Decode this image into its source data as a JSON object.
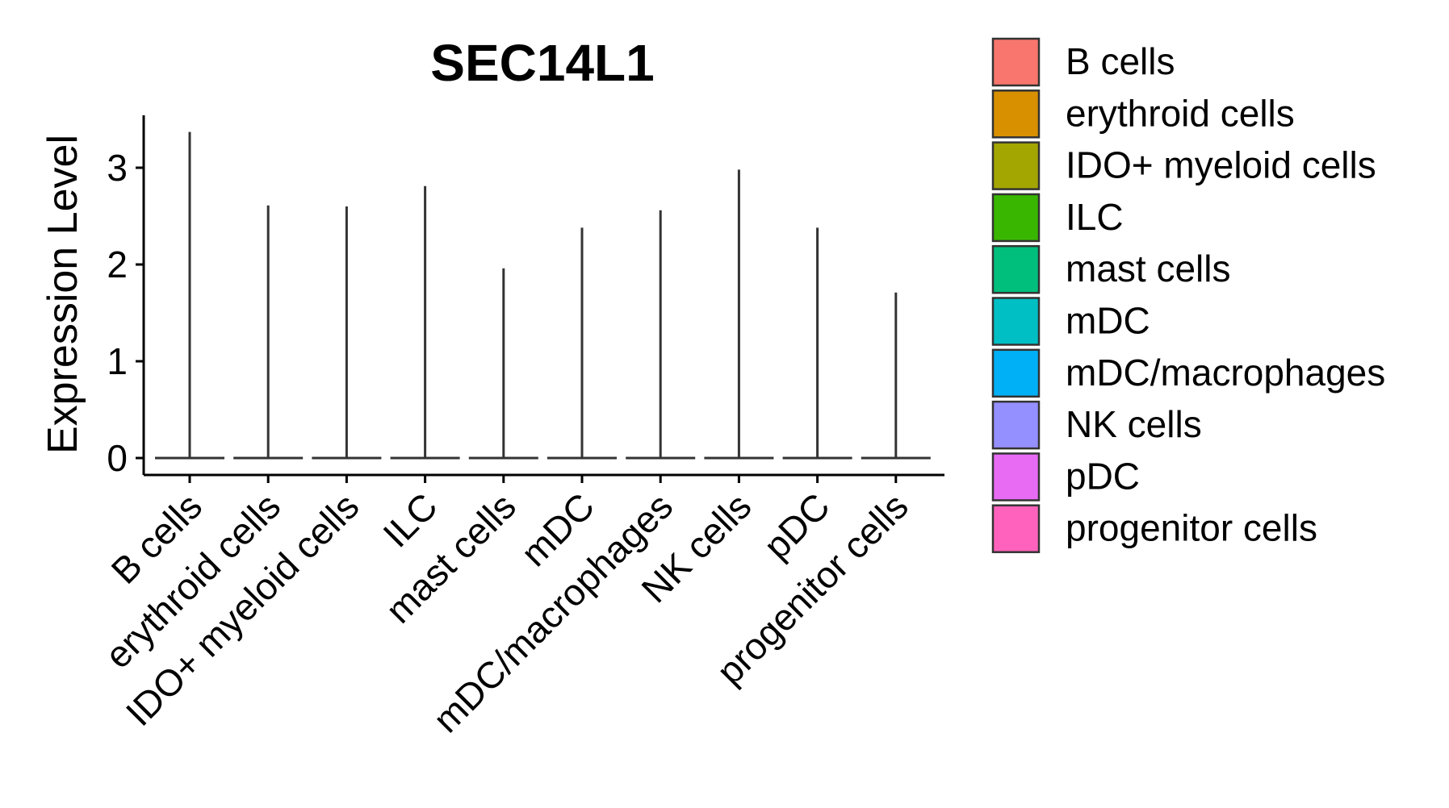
{
  "chart_data": {
    "type": "violin",
    "title": "SEC14L1",
    "xlabel": "",
    "ylabel": "Expression Level",
    "ylim": [
      0,
      3.5
    ],
    "yticks": [
      0,
      1,
      2,
      3
    ],
    "categories": [
      "B cells",
      "erythroid cells",
      "IDO+ myeloid cells",
      "ILC",
      "mast cells",
      "mDC",
      "mDC/macrophages",
      "NK cells",
      "pDC",
      "progenitor cells"
    ],
    "max_values": [
      3.37,
      2.61,
      2.6,
      2.81,
      1.96,
      2.38,
      2.56,
      2.98,
      2.38,
      1.71
    ],
    "median_values": [
      0,
      0,
      0,
      0,
      0,
      0,
      0,
      0,
      0,
      0
    ],
    "legend": {
      "position": "right",
      "entries": [
        {
          "label": "B cells",
          "color": "#F8766D"
        },
        {
          "label": "erythroid cells",
          "color": "#D89000"
        },
        {
          "label": "IDO+ myeloid cells",
          "color": "#A3A500"
        },
        {
          "label": "ILC",
          "color": "#39B600"
        },
        {
          "label": "mast cells",
          "color": "#00BF7D"
        },
        {
          "label": "mDC",
          "color": "#00BFC4"
        },
        {
          "label": "mDC/macrophages",
          "color": "#00B0F6"
        },
        {
          "label": "NK cells",
          "color": "#9590FF"
        },
        {
          "label": "pDC",
          "color": "#E76BF3"
        },
        {
          "label": "progenitor cells",
          "color": "#FF62BC"
        }
      ]
    },
    "grid": false
  }
}
